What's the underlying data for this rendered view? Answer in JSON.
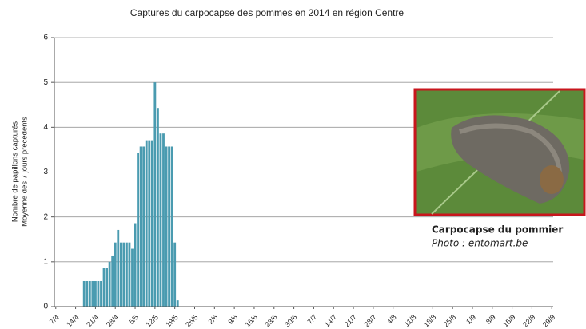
{
  "chart_data": {
    "type": "bar",
    "title": "Captures du carpocapse des pommes en 2014 en région Centre",
    "y_label": [
      "Nombre de papillons capturés",
      "Moyenne des 7 jours précédents"
    ],
    "color": "#4a9bb0",
    "grid": true,
    "ylim": [
      0,
      6
    ],
    "yticks": [
      0,
      1,
      2,
      3,
      4,
      5,
      6
    ],
    "categories": [
      "7/4",
      null,
      null,
      null,
      null,
      null,
      null,
      "14/4",
      null,
      null,
      null,
      null,
      null,
      null,
      "21/4",
      null,
      null,
      null,
      null,
      null,
      null,
      "28/4",
      null,
      null,
      null,
      null,
      null,
      null,
      "5/5",
      null,
      null,
      null,
      null,
      null,
      null,
      "12/5",
      null,
      null,
      null,
      null,
      null,
      null,
      "19/5",
      null,
      null,
      null,
      null,
      null,
      null,
      "26/5",
      null,
      null,
      null,
      null,
      null,
      null,
      "2/6",
      null,
      null,
      null,
      null,
      null,
      null,
      "9/6",
      null,
      null,
      null,
      null,
      null,
      null,
      "16/6",
      null,
      null,
      null,
      null,
      null,
      null,
      "23/6",
      null,
      null,
      null,
      null,
      null,
      null,
      "30/6",
      null,
      null,
      null,
      null,
      null,
      null,
      "7/7",
      null,
      null,
      null,
      null,
      null,
      null,
      "14/7",
      null,
      null,
      null,
      null,
      null,
      null,
      "21/7",
      null,
      null,
      null,
      null,
      null,
      null,
      "28/7",
      null,
      null,
      null,
      null,
      null,
      null,
      "4/8",
      null,
      null,
      null,
      null,
      null,
      null,
      "11/8",
      null,
      null,
      null,
      null,
      null,
      null,
      "18/8",
      null,
      null,
      null,
      null,
      null,
      null,
      "25/8",
      null,
      null,
      null,
      null,
      null,
      null,
      "1/9",
      null,
      null,
      null,
      null,
      null,
      null,
      "8/9",
      null,
      null,
      null,
      null,
      null,
      null,
      "15/9",
      null,
      null,
      null,
      null,
      null,
      null,
      "22/9",
      null,
      null,
      null,
      null,
      null,
      null,
      "29/9"
    ],
    "values": [
      null,
      null,
      null,
      null,
      null,
      null,
      null,
      null,
      null,
      null,
      0.57,
      0.57,
      0.57,
      0.57,
      0.57,
      0.57,
      0.57,
      0.86,
      0.86,
      1.0,
      1.14,
      1.43,
      1.71,
      1.43,
      1.43,
      1.43,
      1.43,
      1.29,
      1.86,
      3.43,
      3.57,
      3.57,
      3.71,
      3.71,
      3.71,
      5.0,
      4.43,
      3.86,
      3.86,
      3.57,
      3.57,
      3.57,
      1.43,
      0.14,
      null,
      null,
      null,
      null,
      null,
      null,
      null,
      null,
      null,
      null,
      null,
      null,
      null,
      null,
      null,
      null,
      null,
      null,
      null,
      null,
      null,
      null,
      null,
      null,
      null,
      null,
      null,
      null,
      null,
      null,
      null,
      null,
      null,
      null,
      null,
      null,
      null,
      null,
      null,
      null,
      null,
      null,
      null,
      null,
      null,
      null,
      null,
      null,
      null,
      null,
      null,
      null,
      null,
      null,
      null,
      null,
      null,
      null,
      null,
      null,
      null,
      null,
      null,
      null,
      null,
      null,
      null,
      null,
      null,
      null,
      null,
      null,
      null,
      null,
      null,
      null,
      null,
      null,
      null,
      null,
      null,
      null,
      null,
      null,
      null,
      null,
      null,
      null,
      null,
      null,
      null,
      null,
      null,
      null,
      null,
      null,
      null,
      null,
      null,
      null,
      null,
      null,
      null,
      null,
      null,
      null,
      null,
      null,
      null,
      null,
      null,
      null,
      null,
      null,
      null,
      null,
      null,
      null,
      null,
      null,
      null,
      null,
      null,
      null,
      null,
      null,
      null,
      null,
      null,
      null,
      null,
      null
    ]
  },
  "inset": {
    "caption": "Carpocapse du pommier",
    "credit": "Photo : entomart.be"
  }
}
